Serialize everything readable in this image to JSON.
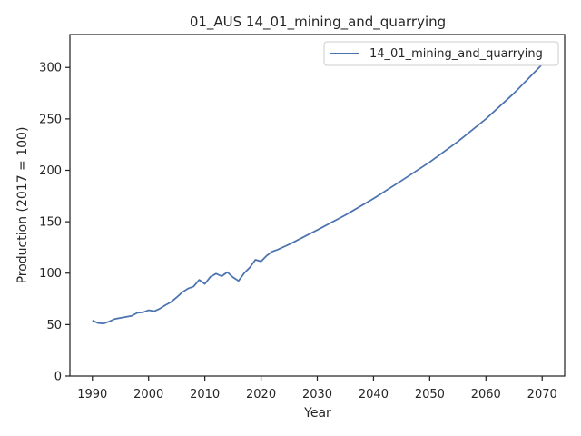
{
  "chart_data": {
    "type": "line",
    "title": "01_AUS 14_01_mining_and_quarrying",
    "xlabel": "Year",
    "ylabel": "Production (2017 = 100)",
    "xlim": [
      1986,
      2074
    ],
    "ylim": [
      0,
      332
    ],
    "xticks": [
      1990,
      2000,
      2010,
      2020,
      2030,
      2040,
      2050,
      2060,
      2070
    ],
    "yticks": [
      0,
      50,
      100,
      150,
      200,
      250,
      300
    ],
    "grid": false,
    "legend_position": "top-right",
    "series": [
      {
        "name": "14_01_mining_and_quarrying",
        "color": "#4c72b0",
        "points": [
          [
            1990,
            54
          ],
          [
            1991,
            51.5
          ],
          [
            1992,
            51
          ],
          [
            1993,
            53
          ],
          [
            1994,
            55.5
          ],
          [
            1995,
            56.5
          ],
          [
            1996,
            57.5
          ],
          [
            1997,
            58.5
          ],
          [
            1998,
            61.5
          ],
          [
            1999,
            62
          ],
          [
            2000,
            64
          ],
          [
            2001,
            63
          ],
          [
            2002,
            65.5
          ],
          [
            2003,
            69
          ],
          [
            2004,
            72
          ],
          [
            2005,
            76.5
          ],
          [
            2006,
            81.5
          ],
          [
            2007,
            85
          ],
          [
            2008,
            87
          ],
          [
            2009,
            93.5
          ],
          [
            2010,
            89.5
          ],
          [
            2011,
            96.5
          ],
          [
            2012,
            99.5
          ],
          [
            2013,
            97
          ],
          [
            2014,
            101
          ],
          [
            2015,
            96
          ],
          [
            2016,
            92.5
          ],
          [
            2017,
            100
          ],
          [
            2018,
            105.5
          ],
          [
            2019,
            113
          ],
          [
            2020,
            111.5
          ],
          [
            2021,
            117
          ],
          [
            2022,
            121
          ],
          [
            2023,
            123
          ],
          [
            2024,
            125.5
          ],
          [
            2025,
            128
          ],
          [
            2030,
            142
          ],
          [
            2035,
            156.5
          ],
          [
            2040,
            172.5
          ],
          [
            2045,
            190
          ],
          [
            2050,
            208
          ],
          [
            2055,
            228
          ],
          [
            2060,
            250
          ],
          [
            2065,
            275
          ],
          [
            2070,
            303
          ],
          [
            2071,
            309
          ]
        ]
      }
    ]
  }
}
